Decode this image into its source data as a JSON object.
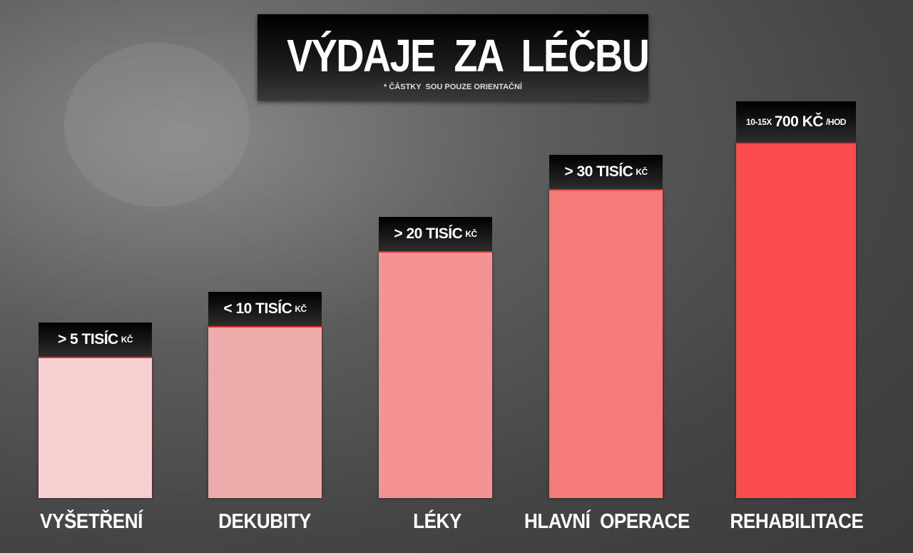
{
  "header": {
    "title": "VÝDAJE  ZA  LÉČBU",
    "note": "* ČÁSTKY  SOU POUZE ORIENTAČNÍ"
  },
  "bars": [
    {
      "category": "VYŠETŘENÍ",
      "amount": "> 5 TISÍC",
      "unit": "KČ"
    },
    {
      "category": "DEKUBITY",
      "amount": "< 10 TISÍC",
      "unit": "KČ"
    },
    {
      "category": "LÉKY",
      "amount": "> 20 TISÍC",
      "unit": "KČ"
    },
    {
      "category": "HLAVNÍ  OPERACE",
      "amount": "> 30 TISÍC",
      "unit": "KČ"
    },
    {
      "category": "REHABILITACE",
      "prefix": "10-15X",
      "amount": "700 KČ",
      "unit": "/HOD"
    }
  ]
}
